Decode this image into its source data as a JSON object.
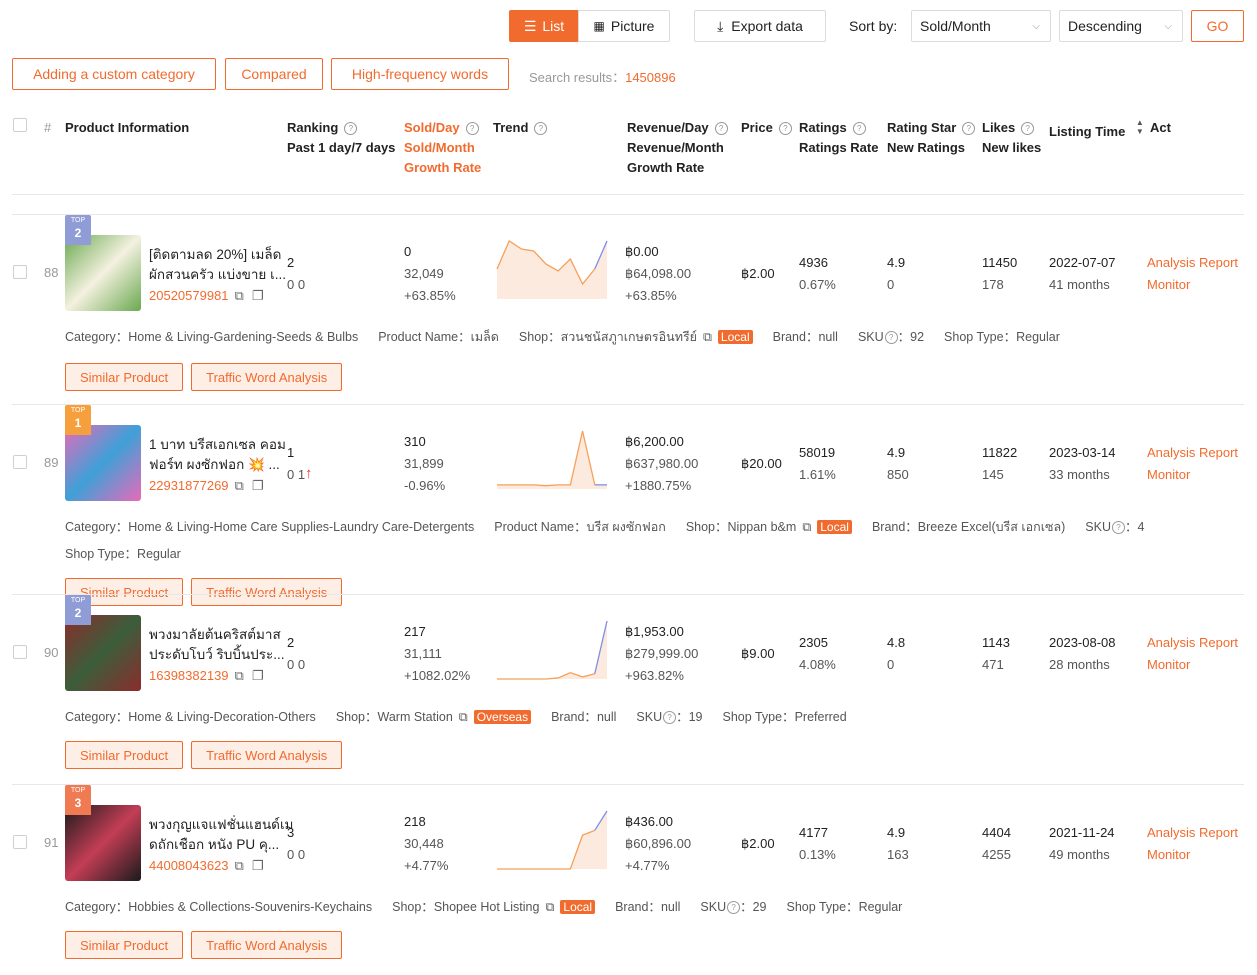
{
  "toolbar": {
    "view_list": "List",
    "view_picture": "Picture",
    "export": "Export data",
    "sort_label": "Sort by:",
    "sort_field": "Sold/Month",
    "sort_order": "Descending",
    "go": "GO"
  },
  "filters": {
    "buttons": [
      "Adding a custom category",
      "Compared",
      "High-frequency words"
    ],
    "search_label": "Search results：",
    "search_count": "1450896"
  },
  "header": {
    "columns": [
      {
        "lines": [
          "#"
        ]
      },
      {
        "lines": [
          "Product Information"
        ]
      },
      {
        "lines": [
          "Ranking",
          "Past 1 day/7 days"
        ]
      },
      {
        "lines": [
          "Sold/Day",
          "Sold/Month",
          "Growth Rate"
        ]
      },
      {
        "lines": [
          "Trend"
        ]
      },
      {
        "lines": [
          "Revenue/Day",
          "Revenue/Month",
          "Growth Rate"
        ]
      },
      {
        "lines": [
          "Price"
        ]
      },
      {
        "lines": [
          "Ratings",
          "Ratings Rate"
        ]
      },
      {
        "lines": [
          "Rating Star",
          "New Ratings"
        ]
      },
      {
        "lines": [
          "Likes",
          "New likes"
        ]
      },
      {
        "lines": [
          "Listing Time"
        ]
      },
      {
        "lines": [
          "Act"
        ]
      }
    ]
  },
  "rows": [
    {
      "index": "88",
      "badge": "TOP",
      "badge_rank": "2",
      "title": [
        "[ติดตามลด 20%] เมล็ด",
        "ผักสวนครัว แบ่งขาย เ..."
      ],
      "id": "20520579981",
      "ranking": "2",
      "ranking_change": "0 0",
      "sold_day": "0",
      "sold_month": "32,049",
      "sold_growth": "+63.85%",
      "trend": [
        30,
        58,
        50,
        48,
        35,
        28,
        40,
        15,
        30,
        58
      ],
      "revenue_day": "฿0.00",
      "revenue_month": "฿64,098.00",
      "revenue_growth": "+63.85%",
      "price": "฿2.00",
      "ratings": "4936",
      "ratings_rate": "0.67%",
      "rating_star": "4.9",
      "new_ratings": "0",
      "likes": "11450",
      "new_likes": "178",
      "listing_date": "2022-07-07",
      "listing_age": "41 months",
      "actions": [
        "Analysis Report",
        "Monitor"
      ],
      "details": [
        {
          "label": "Category：",
          "value": "Home & Living-Gardening-Seeds & Bulbs"
        },
        {
          "label": "Product Name：",
          "value": "เมล็ด"
        },
        {
          "label": "Shop：",
          "value": "สวนชนัสภูาเกษตรอินทรีย์",
          "tag": "Local"
        },
        {
          "label": "Brand：",
          "value": "null"
        },
        {
          "label": "SKU",
          "value": "：92"
        },
        {
          "label": "Shop Type：",
          "value": "Regular"
        }
      ],
      "buttons": [
        "Similar Product",
        "Traffic Word Analysis"
      ]
    },
    {
      "index": "89",
      "badge": "TOP",
      "badge_rank": "1",
      "title": [
        "1 บาท บรีสเอกเซล คอม",
        "ฟอร์ท ผงซักฟอก 💥 ..."
      ],
      "id": "22931877269",
      "ranking": "1",
      "ranking_change": "0 1",
      "sold_day": "310",
      "sold_month": "31,899",
      "sold_growth": "-0.96%",
      "trend": [
        5,
        5,
        5,
        5,
        4,
        5,
        5,
        70,
        5,
        5
      ],
      "revenue_day": "฿6,200.00",
      "revenue_month": "฿637,980.00",
      "revenue_growth": "+1880.75%",
      "price": "฿20.00",
      "ratings": "58019",
      "ratings_rate": "1.61%",
      "rating_star": "4.9",
      "new_ratings": "850",
      "likes": "11822",
      "new_likes": "145",
      "listing_date": "2023-03-14",
      "listing_age": "33 months",
      "actions": [
        "Analysis Report",
        "Monitor"
      ],
      "details": [
        {
          "label": "Category：",
          "value": "Home & Living-Home Care Supplies-Laundry Care-Detergents"
        },
        {
          "label": "Product Name：",
          "value": "บรีส ผงซักฟอก"
        },
        {
          "label": "Shop：",
          "value": "Nippan b&m",
          "tag": "Local"
        },
        {
          "label": "Brand：",
          "value": "Breeze Excel(บรีส เอกเซล)"
        },
        {
          "label": "SKU",
          "value": "：4"
        },
        {
          "label": "Shop Type：",
          "value": "Regular"
        }
      ],
      "buttons": [
        "Similar Product",
        "Traffic Word Analysis"
      ]
    },
    {
      "index": "90",
      "badge": "TOP",
      "badge_rank": "2",
      "title": [
        "พวงมาลัยต้นคริสต์มาส",
        "ประดับโบว์ ริบบิ้นประ..."
      ],
      "id": "16398382139",
      "ranking": "2",
      "ranking_change": "0 0",
      "sold_day": "217",
      "sold_month": "31,111",
      "sold_growth": "+1082.02%",
      "trend": [
        0,
        0,
        0,
        0,
        0,
        1,
        6,
        2,
        5,
        55
      ],
      "revenue_day": "฿1,953.00",
      "revenue_month": "฿279,999.00",
      "revenue_growth": "+963.82%",
      "price": "฿9.00",
      "ratings": "2305",
      "ratings_rate": "4.08%",
      "rating_star": "4.8",
      "new_ratings": "0",
      "likes": "1143",
      "new_likes": "471",
      "listing_date": "2023-08-08",
      "listing_age": "28 months",
      "actions": [
        "Analysis Report",
        "Monitor"
      ],
      "details": [
        {
          "label": "Category：",
          "value": "Home & Living-Decoration-Others"
        },
        {
          "label": "Shop：",
          "value": "Warm Station",
          "tag": "Overseas"
        },
        {
          "label": "Brand：",
          "value": "null"
        },
        {
          "label": "SKU",
          "value": "：19"
        },
        {
          "label": "Shop Type：",
          "value": "Preferred"
        }
      ],
      "buttons": [
        "Similar Product",
        "Traffic Word Analysis"
      ]
    },
    {
      "index": "91",
      "badge": "TOP",
      "badge_rank": "3",
      "title": [
        "พวงกุญแจแฟชั่นแฮนด์เม",
        "ดถักเชือก หนัง PU คุ..."
      ],
      "id": "44008043623",
      "ranking": "3",
      "ranking_change": "0 0",
      "sold_day": "218",
      "sold_month": "30,448",
      "sold_growth": "+4.77%",
      "trend": [
        0,
        0,
        0,
        0,
        0,
        0,
        0,
        35,
        40,
        60
      ],
      "revenue_day": "฿436.00",
      "revenue_month": "฿60,896.00",
      "revenue_growth": "+4.77%",
      "price": "฿2.00",
      "ratings": "4177",
      "ratings_rate": "0.13%",
      "rating_star": "4.9",
      "new_ratings": "163",
      "likes": "4404",
      "new_likes": "4255",
      "listing_date": "2021-11-24",
      "listing_age": "49 months",
      "actions": [
        "Analysis Report",
        "Monitor"
      ],
      "details": [
        {
          "label": "Category：",
          "value": "Hobbies & Collections-Souvenirs-Keychains"
        },
        {
          "label": "Shop：",
          "value": "Shopee Hot Listing",
          "tag": "Local"
        },
        {
          "label": "Brand：",
          "value": "null"
        },
        {
          "label": "SKU",
          "value": "：29"
        },
        {
          "label": "Shop Type：",
          "value": "Regular"
        }
      ],
      "buttons": [
        "Similar Product",
        "Traffic Word Analysis"
      ]
    }
  ]
}
